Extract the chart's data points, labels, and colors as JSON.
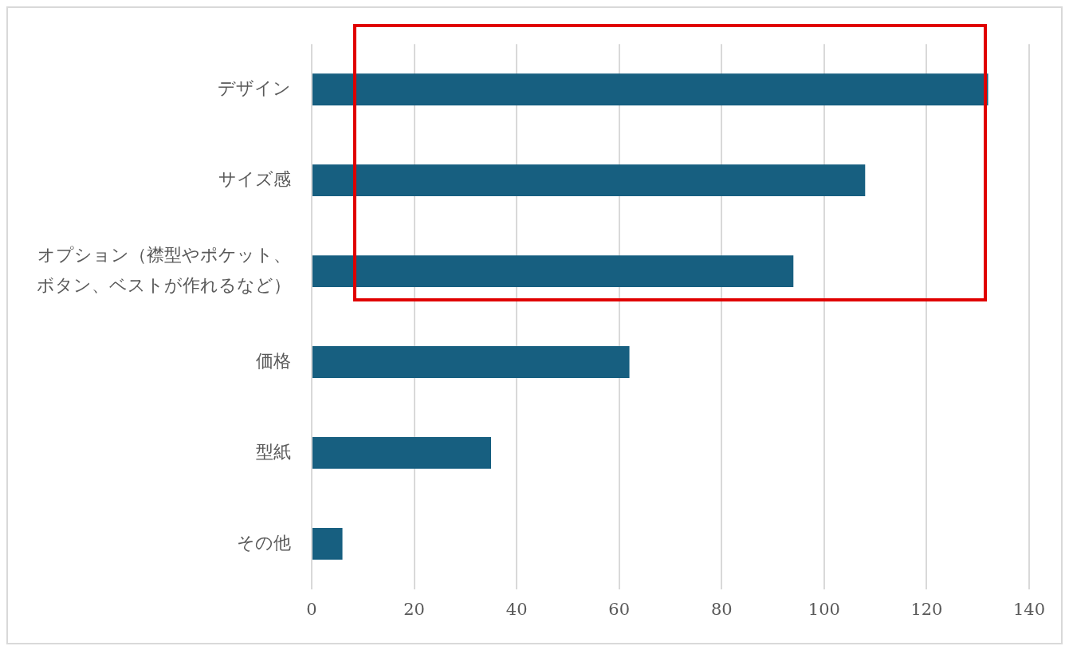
{
  "chart_data": {
    "type": "bar",
    "orientation": "horizontal",
    "categories": [
      "デザイン",
      "サイズ感",
      "オプション（襟型やポケット、ボタン、ベストが作れるなど）",
      "価格",
      "型紙",
      "その他"
    ],
    "values": [
      132,
      108,
      94,
      62,
      35,
      6
    ],
    "color": "#175f80",
    "xlim": [
      0,
      140
    ],
    "xticks": [
      0,
      20,
      40,
      60,
      80,
      100,
      120,
      140
    ],
    "grid": "x",
    "legend": false
  }
}
